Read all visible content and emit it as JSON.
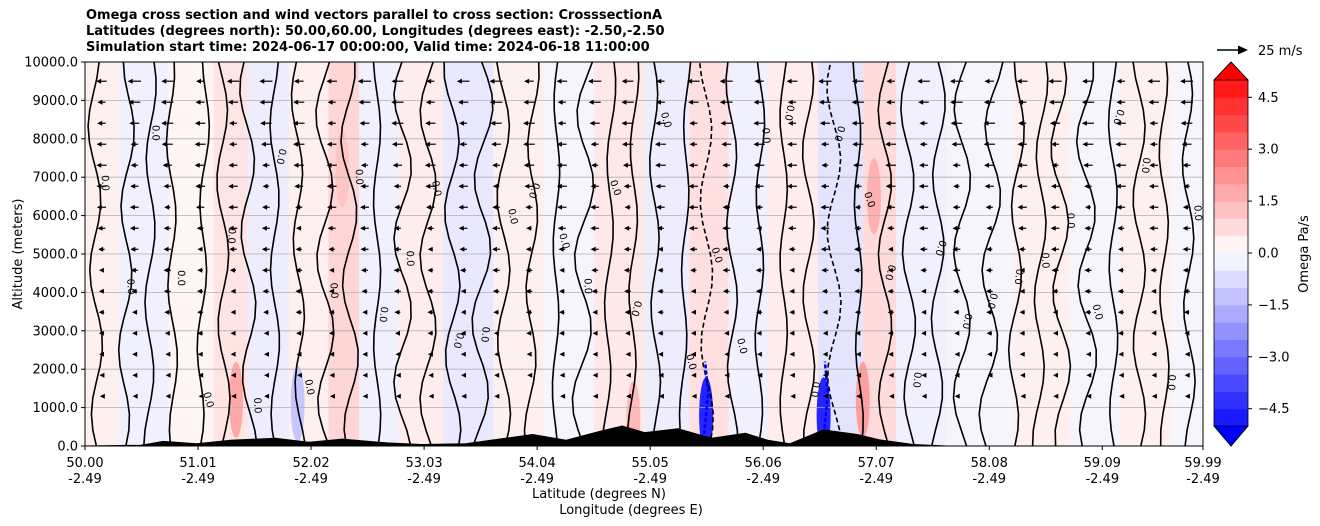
{
  "chart_data": {
    "type": "heatmap",
    "title_lines": [
      "Omega cross section and wind vectors parallel to cross section: CrosssectionA",
      "Latitudes (degrees north): 50.00,60.00, Longitudes (degrees east): -2.50,-2.50",
      "Simulation start time: 2024-06-17 00:00:00, Valid time: 2024-06-18 11:00:00"
    ],
    "ylabel": "Altitude (meters)",
    "xlabel_lat": "Latitude (degrees N)",
    "xlabel_lon": "Longitude (degrees E)",
    "ylim": [
      0,
      10000
    ],
    "xlim": [
      50.0,
      59.99
    ],
    "yticks": [
      {
        "value": 0,
        "label": "0.0"
      },
      {
        "value": 1000,
        "label": "1000.0"
      },
      {
        "value": 2000,
        "label": "2000.0"
      },
      {
        "value": 3000,
        "label": "3000.0"
      },
      {
        "value": 4000,
        "label": "4000.0"
      },
      {
        "value": 5000,
        "label": "5000.0"
      },
      {
        "value": 6000,
        "label": "6000.0"
      },
      {
        "value": 7000,
        "label": "7000.0"
      },
      {
        "value": 8000,
        "label": "8000.0"
      },
      {
        "value": 9000,
        "label": "9000.0"
      },
      {
        "value": 10000,
        "label": "10000.0"
      }
    ],
    "xticks": [
      {
        "value": 50.0,
        "lat": "50.00",
        "lon": "-2.49"
      },
      {
        "value": 51.01,
        "lat": "51.01",
        "lon": "-2.49"
      },
      {
        "value": 52.02,
        "lat": "52.02",
        "lon": "-2.49"
      },
      {
        "value": 53.03,
        "lat": "53.03",
        "lon": "-2.49"
      },
      {
        "value": 54.04,
        "lat": "54.04",
        "lon": "-2.49"
      },
      {
        "value": 55.05,
        "lat": "55.05",
        "lon": "-2.49"
      },
      {
        "value": 56.06,
        "lat": "56.06",
        "lon": "-2.49"
      },
      {
        "value": 57.07,
        "lat": "57.07",
        "lon": "-2.49"
      },
      {
        "value": 58.08,
        "lat": "58.08",
        "lon": "-2.49"
      },
      {
        "value": 59.09,
        "lat": "59.09",
        "lon": "-2.49"
      },
      {
        "value": 59.99,
        "lat": "59.99",
        "lon": "-2.49"
      }
    ],
    "colorbar": {
      "label": "Omega Pa/s",
      "range": [
        -5,
        5
      ],
      "ticks": [
        {
          "value": 4.5,
          "label": "4.5"
        },
        {
          "value": 3.0,
          "label": "3.0"
        },
        {
          "value": 1.5,
          "label": "1.5"
        },
        {
          "value": 0.0,
          "label": "0.0"
        },
        {
          "value": -1.5,
          "label": "−1.5"
        },
        {
          "value": -3.0,
          "label": "−3.0"
        },
        {
          "value": -4.5,
          "label": "−4.5"
        }
      ],
      "pos_color": "#ff0000",
      "neg_color": "#0000ff"
    },
    "wind_key": {
      "label": "25 m/s"
    },
    "omega_bands": [
      {
        "lat": 50.1,
        "omega": 0.3
      },
      {
        "lat": 50.5,
        "omega": -0.3
      },
      {
        "lat": 51.0,
        "omega": 0.2
      },
      {
        "lat": 51.3,
        "omega": 0.6
      },
      {
        "lat": 51.6,
        "omega": -0.4
      },
      {
        "lat": 52.05,
        "omega": 0.3
      },
      {
        "lat": 52.3,
        "omega": 0.9
      },
      {
        "lat": 52.6,
        "omega": -0.3
      },
      {
        "lat": 53.0,
        "omega": 0.4
      },
      {
        "lat": 53.4,
        "omega": -0.5
      },
      {
        "lat": 53.9,
        "omega": 0.3
      },
      {
        "lat": 54.3,
        "omega": -0.2
      },
      {
        "lat": 54.8,
        "omega": 0.5
      },
      {
        "lat": 55.2,
        "omega": -0.4
      },
      {
        "lat": 55.6,
        "omega": 0.7
      },
      {
        "lat": 55.9,
        "omega": -0.3
      },
      {
        "lat": 56.3,
        "omega": 0.4
      },
      {
        "lat": 56.8,
        "omega": -0.6
      },
      {
        "lat": 57.1,
        "omega": 0.8
      },
      {
        "lat": 57.4,
        "omega": -0.3
      },
      {
        "lat": 58.0,
        "omega": -0.2
      },
      {
        "lat": 58.6,
        "omega": 0.3
      },
      {
        "lat": 59.0,
        "omega": -0.2
      },
      {
        "lat": 59.5,
        "omega": 0.3
      },
      {
        "lat": 59.9,
        "omega": -0.2
      }
    ],
    "omega_blobs": [
      {
        "lat": 51.35,
        "alt": 1200,
        "omega": 1.8
      },
      {
        "lat": 52.3,
        "alt": 7200,
        "omega": 1.2
      },
      {
        "lat": 51.9,
        "alt": 1100,
        "omega": -1.2
      },
      {
        "lat": 55.55,
        "alt": 800,
        "omega": -4.5
      },
      {
        "lat": 56.6,
        "alt": 800,
        "omega": -4.5
      },
      {
        "lat": 57.05,
        "alt": 6500,
        "omega": 1.6
      },
      {
        "lat": 56.95,
        "alt": 1200,
        "omega": 2.0
      },
      {
        "lat": 54.9,
        "alt": 700,
        "omega": 1.4
      }
    ],
    "contour_label_text": "0.0",
    "terrain": [
      {
        "lat": 50.0,
        "alt": 0
      },
      {
        "lat": 50.5,
        "alt": 20
      },
      {
        "lat": 50.7,
        "alt": 120
      },
      {
        "lat": 51.0,
        "alt": 60
      },
      {
        "lat": 51.3,
        "alt": 150
      },
      {
        "lat": 51.7,
        "alt": 200
      },
      {
        "lat": 52.0,
        "alt": 100
      },
      {
        "lat": 52.3,
        "alt": 180
      },
      {
        "lat": 52.7,
        "alt": 80
      },
      {
        "lat": 53.0,
        "alt": 40
      },
      {
        "lat": 53.4,
        "alt": 60
      },
      {
        "lat": 53.8,
        "alt": 220
      },
      {
        "lat": 54.0,
        "alt": 300
      },
      {
        "lat": 54.3,
        "alt": 150
      },
      {
        "lat": 54.6,
        "alt": 380
      },
      {
        "lat": 54.8,
        "alt": 520
      },
      {
        "lat": 55.0,
        "alt": 350
      },
      {
        "lat": 55.3,
        "alt": 450
      },
      {
        "lat": 55.6,
        "alt": 200
      },
      {
        "lat": 55.9,
        "alt": 330
      },
      {
        "lat": 56.1,
        "alt": 150
      },
      {
        "lat": 56.3,
        "alt": 60
      },
      {
        "lat": 56.6,
        "alt": 420
      },
      {
        "lat": 56.9,
        "alt": 300
      },
      {
        "lat": 57.1,
        "alt": 160
      },
      {
        "lat": 57.4,
        "alt": 40
      },
      {
        "lat": 57.7,
        "alt": 0
      },
      {
        "lat": 59.99,
        "alt": 0
      }
    ]
  }
}
